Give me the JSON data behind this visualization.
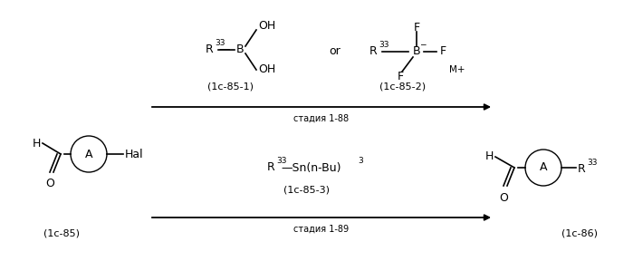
{
  "bg_color": "#ffffff",
  "text_color": "#000000",
  "figsize": [
    6.99,
    2.88
  ],
  "dpi": 100,
  "boronic_acid_code": "(1c-85-1)",
  "bf3_code": "(1c-85-2)",
  "or_text": "or",
  "arrow1_label": "стадия 1-88",
  "reactant_code": "(1c-85)",
  "stannane_code": "(1c-85-3)",
  "arrow2_label": "стадия 1-89",
  "product_code": "(1c-86)"
}
